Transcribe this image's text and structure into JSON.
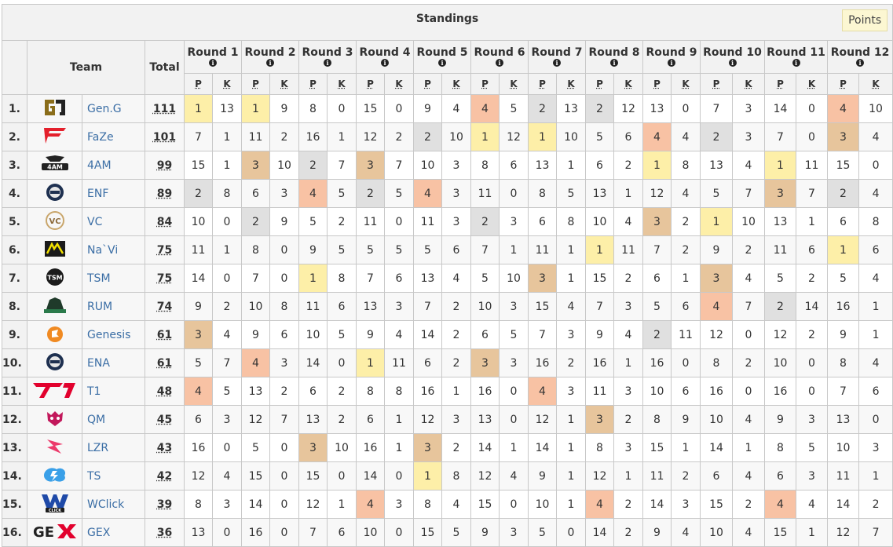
{
  "title": "Standings",
  "points_button": "Points",
  "headers": {
    "team": "Team",
    "total": "Total",
    "p": "P",
    "k": "K"
  },
  "rounds": [
    "Round 1",
    "Round 2",
    "Round 3",
    "Round 4",
    "Round 5",
    "Round 6",
    "Round 7",
    "Round 8",
    "Round 9",
    "Round 10",
    "Round 11",
    "Round 12"
  ],
  "placement_colors": {
    "1": "#fdefa8",
    "2": "#e0e0e0",
    "3": "#e7c59c",
    "4": "#f8c2a4"
  },
  "teams": [
    {
      "rank": "1.",
      "name": "Gen.G",
      "logo": "geng-logo",
      "total": "111",
      "rounds": [
        [
          1,
          13
        ],
        [
          1,
          9
        ],
        [
          8,
          0
        ],
        [
          15,
          0
        ],
        [
          9,
          4
        ],
        [
          4,
          5
        ],
        [
          2,
          13
        ],
        [
          2,
          12
        ],
        [
          13,
          0
        ],
        [
          7,
          3
        ],
        [
          14,
          0
        ],
        [
          4,
          10
        ]
      ]
    },
    {
      "rank": "2.",
      "name": "FaZe",
      "logo": "faze-logo",
      "total": "101",
      "rounds": [
        [
          7,
          1
        ],
        [
          11,
          2
        ],
        [
          16,
          1
        ],
        [
          12,
          2
        ],
        [
          2,
          10
        ],
        [
          1,
          12
        ],
        [
          1,
          10
        ],
        [
          5,
          6
        ],
        [
          4,
          4
        ],
        [
          2,
          3
        ],
        [
          7,
          0
        ],
        [
          3,
          4
        ]
      ]
    },
    {
      "rank": "3.",
      "name": "4AM",
      "logo": "4am-logo",
      "total": "99",
      "rounds": [
        [
          15,
          1
        ],
        [
          3,
          10
        ],
        [
          2,
          7
        ],
        [
          3,
          7
        ],
        [
          10,
          3
        ],
        [
          8,
          6
        ],
        [
          13,
          1
        ],
        [
          6,
          2
        ],
        [
          1,
          8
        ],
        [
          13,
          4
        ],
        [
          1,
          11
        ],
        [
          15,
          0
        ]
      ]
    },
    {
      "rank": "4.",
      "name": "ENF",
      "logo": "enf-logo",
      "total": "89",
      "rounds": [
        [
          2,
          8
        ],
        [
          6,
          3
        ],
        [
          4,
          5
        ],
        [
          2,
          5
        ],
        [
          4,
          3
        ],
        [
          11,
          0
        ],
        [
          8,
          5
        ],
        [
          13,
          1
        ],
        [
          12,
          4
        ],
        [
          5,
          7
        ],
        [
          3,
          7
        ],
        [
          2,
          4
        ]
      ]
    },
    {
      "rank": "5.",
      "name": "VC",
      "logo": "vc-logo",
      "total": "84",
      "rounds": [
        [
          10,
          0
        ],
        [
          2,
          9
        ],
        [
          5,
          2
        ],
        [
          11,
          0
        ],
        [
          11,
          3
        ],
        [
          2,
          3
        ],
        [
          6,
          8
        ],
        [
          10,
          4
        ],
        [
          3,
          2
        ],
        [
          1,
          10
        ],
        [
          13,
          1
        ],
        [
          6,
          8
        ]
      ]
    },
    {
      "rank": "6.",
      "name": "Na`Vi",
      "logo": "navi-logo",
      "total": "75",
      "rounds": [
        [
          11,
          1
        ],
        [
          8,
          0
        ],
        [
          9,
          5
        ],
        [
          5,
          5
        ],
        [
          5,
          6
        ],
        [
          7,
          1
        ],
        [
          11,
          1
        ],
        [
          1,
          11
        ],
        [
          7,
          2
        ],
        [
          9,
          2
        ],
        [
          11,
          6
        ],
        [
          1,
          6
        ]
      ]
    },
    {
      "rank": "7.",
      "name": "TSM",
      "logo": "tsm-logo",
      "total": "75",
      "rounds": [
        [
          14,
          0
        ],
        [
          7,
          0
        ],
        [
          1,
          8
        ],
        [
          7,
          6
        ],
        [
          13,
          4
        ],
        [
          5,
          10
        ],
        [
          3,
          1
        ],
        [
          15,
          2
        ],
        [
          6,
          1
        ],
        [
          3,
          4
        ],
        [
          5,
          2
        ],
        [
          5,
          4
        ]
      ]
    },
    {
      "rank": "8.",
      "name": "RUM",
      "logo": "rum-logo",
      "total": "74",
      "rounds": [
        [
          9,
          2
        ],
        [
          10,
          8
        ],
        [
          11,
          6
        ],
        [
          13,
          3
        ],
        [
          7,
          2
        ],
        [
          10,
          3
        ],
        [
          15,
          4
        ],
        [
          7,
          3
        ],
        [
          5,
          6
        ],
        [
          4,
          7
        ],
        [
          2,
          14
        ],
        [
          16,
          1
        ]
      ]
    },
    {
      "rank": "9.",
      "name": "Genesis",
      "logo": "genesis-logo",
      "total": "61",
      "rounds": [
        [
          3,
          4
        ],
        [
          9,
          6
        ],
        [
          10,
          5
        ],
        [
          9,
          4
        ],
        [
          14,
          2
        ],
        [
          6,
          5
        ],
        [
          7,
          3
        ],
        [
          9,
          4
        ],
        [
          2,
          11
        ],
        [
          12,
          0
        ],
        [
          12,
          2
        ],
        [
          9,
          1
        ]
      ]
    },
    {
      "rank": "10.",
      "name": "ENA",
      "logo": "ena-logo",
      "total": "61",
      "rounds": [
        [
          5,
          7
        ],
        [
          4,
          3
        ],
        [
          14,
          0
        ],
        [
          1,
          11
        ],
        [
          6,
          2
        ],
        [
          3,
          3
        ],
        [
          16,
          2
        ],
        [
          16,
          1
        ],
        [
          16,
          0
        ],
        [
          8,
          2
        ],
        [
          10,
          0
        ],
        [
          8,
          4
        ]
      ]
    },
    {
      "rank": "11.",
      "name": "T1",
      "logo": "t1-logo",
      "total": "48",
      "rounds": [
        [
          4,
          5
        ],
        [
          13,
          2
        ],
        [
          6,
          2
        ],
        [
          8,
          8
        ],
        [
          16,
          1
        ],
        [
          16,
          0
        ],
        [
          4,
          3
        ],
        [
          11,
          3
        ],
        [
          10,
          6
        ],
        [
          16,
          0
        ],
        [
          16,
          0
        ],
        [
          7,
          6
        ]
      ]
    },
    {
      "rank": "12.",
      "name": "QM",
      "logo": "qm-logo",
      "total": "45",
      "rounds": [
        [
          6,
          3
        ],
        [
          12,
          7
        ],
        [
          13,
          2
        ],
        [
          6,
          1
        ],
        [
          12,
          3
        ],
        [
          13,
          0
        ],
        [
          12,
          1
        ],
        [
          3,
          2
        ],
        [
          8,
          9
        ],
        [
          10,
          4
        ],
        [
          9,
          3
        ],
        [
          13,
          0
        ]
      ]
    },
    {
      "rank": "13.",
      "name": "LZR",
      "logo": "lzr-logo",
      "total": "43",
      "rounds": [
        [
          16,
          0
        ],
        [
          5,
          0
        ],
        [
          3,
          10
        ],
        [
          16,
          1
        ],
        [
          3,
          2
        ],
        [
          14,
          1
        ],
        [
          14,
          1
        ],
        [
          8,
          3
        ],
        [
          15,
          1
        ],
        [
          14,
          1
        ],
        [
          8,
          5
        ],
        [
          10,
          3
        ]
      ]
    },
    {
      "rank": "14.",
      "name": "TS",
      "logo": "ts-logo",
      "total": "42",
      "rounds": [
        [
          12,
          4
        ],
        [
          15,
          0
        ],
        [
          15,
          0
        ],
        [
          14,
          0
        ],
        [
          1,
          8
        ],
        [
          12,
          4
        ],
        [
          9,
          1
        ],
        [
          12,
          1
        ],
        [
          11,
          2
        ],
        [
          6,
          4
        ],
        [
          6,
          3
        ],
        [
          11,
          1
        ]
      ]
    },
    {
      "rank": "15.",
      "name": "WClick",
      "logo": "wclick-logo",
      "total": "39",
      "rounds": [
        [
          8,
          3
        ],
        [
          14,
          0
        ],
        [
          12,
          1
        ],
        [
          4,
          3
        ],
        [
          8,
          4
        ],
        [
          15,
          0
        ],
        [
          10,
          1
        ],
        [
          4,
          2
        ],
        [
          14,
          3
        ],
        [
          15,
          2
        ],
        [
          4,
          4
        ],
        [
          14,
          2
        ]
      ]
    },
    {
      "rank": "16.",
      "name": "GEX",
      "logo": "gex-logo",
      "total": "36",
      "rounds": [
        [
          13,
          0
        ],
        [
          16,
          0
        ],
        [
          7,
          6
        ],
        [
          10,
          0
        ],
        [
          15,
          5
        ],
        [
          9,
          3
        ],
        [
          5,
          0
        ],
        [
          14,
          2
        ],
        [
          9,
          4
        ],
        [
          10,
          4
        ],
        [
          15,
          1
        ],
        [
          12,
          7
        ]
      ]
    }
  ]
}
